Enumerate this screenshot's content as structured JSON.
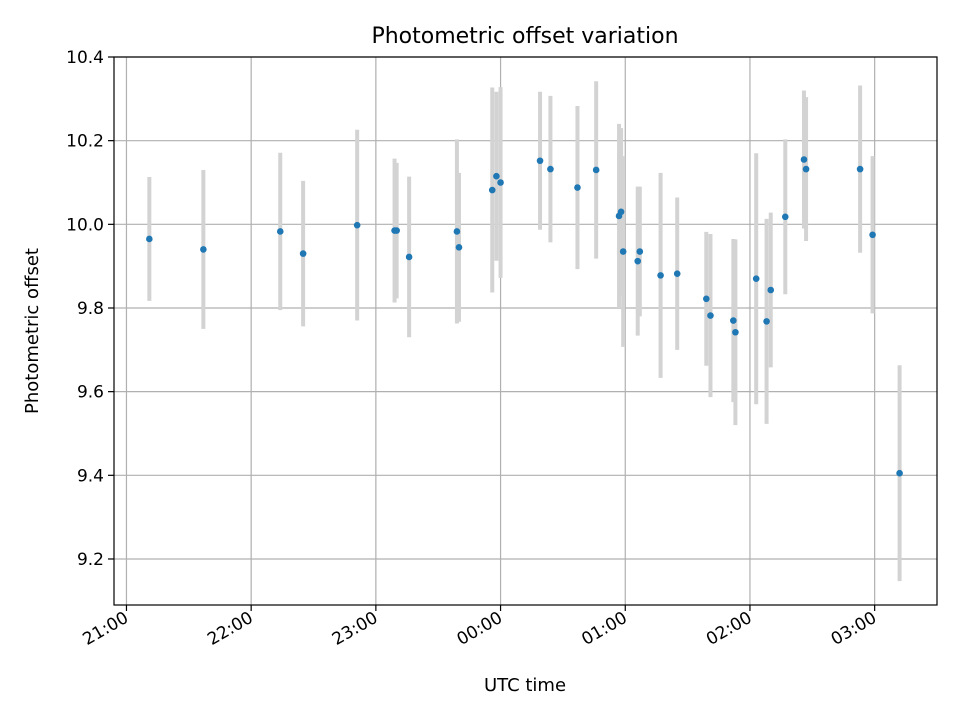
{
  "chart_data": {
    "type": "scatter",
    "title": "Photometric offset variation",
    "xlabel": "UTC time",
    "ylabel": "Photometric offset",
    "xlim": [
      "20:54",
      "03:30"
    ],
    "ylim": [
      9.09,
      10.4
    ],
    "xticks": [
      "21:00",
      "22:00",
      "23:00",
      "00:00",
      "01:00",
      "02:00",
      "03:00"
    ],
    "yticks": [
      "9.2",
      "9.4",
      "9.6",
      "9.8",
      "10.0",
      "10.2",
      "10.4"
    ],
    "grid": true,
    "colors": {
      "point": "#1f77b4",
      "errorbar": "#d3d3d3",
      "grid": "#b0b0b0"
    },
    "points": [
      {
        "x": "21:11",
        "y": 9.965,
        "err": 0.148
      },
      {
        "x": "21:37",
        "y": 9.94,
        "err": 0.19
      },
      {
        "x": "22:14",
        "y": 9.983,
        "err": 0.188
      },
      {
        "x": "22:25",
        "y": 9.93,
        "err": 0.174
      },
      {
        "x": "22:51",
        "y": 9.998,
        "err": 0.228
      },
      {
        "x": "23:09",
        "y": 9.985,
        "err": 0.172
      },
      {
        "x": "23:10",
        "y": 9.985,
        "err": 0.162
      },
      {
        "x": "23:16",
        "y": 9.922,
        "err": 0.192
      },
      {
        "x": "23:39",
        "y": 9.983,
        "err": 0.22
      },
      {
        "x": "23:40",
        "y": 9.945,
        "err": 0.178
      },
      {
        "x": "23:56",
        "y": 10.082,
        "err": 0.245
      },
      {
        "x": "23:58",
        "y": 10.115,
        "err": 0.202
      },
      {
        "x": "00:00",
        "y": 10.1,
        "err": 0.228
      },
      {
        "x": "00:19",
        "y": 10.152,
        "err": 0.165
      },
      {
        "x": "00:24",
        "y": 10.132,
        "err": 0.175
      },
      {
        "x": "00:37",
        "y": 10.088,
        "err": 0.195
      },
      {
        "x": "00:46",
        "y": 10.13,
        "err": 0.212
      },
      {
        "x": "00:57",
        "y": 10.02,
        "err": 0.22
      },
      {
        "x": "00:58",
        "y": 10.03,
        "err": 0.2
      },
      {
        "x": "00:59",
        "y": 9.935,
        "err": 0.228
      },
      {
        "x": "01:06",
        "y": 9.912,
        "err": 0.178
      },
      {
        "x": "01:07",
        "y": 9.935,
        "err": 0.155
      },
      {
        "x": "01:17",
        "y": 9.878,
        "err": 0.245
      },
      {
        "x": "01:25",
        "y": 9.882,
        "err": 0.182
      },
      {
        "x": "01:39",
        "y": 9.822,
        "err": 0.16
      },
      {
        "x": "01:41",
        "y": 9.782,
        "err": 0.195
      },
      {
        "x": "01:52",
        "y": 9.77,
        "err": 0.195
      },
      {
        "x": "01:53",
        "y": 9.742,
        "err": 0.222
      },
      {
        "x": "02:03",
        "y": 9.87,
        "err": 0.3
      },
      {
        "x": "02:08",
        "y": 9.768,
        "err": 0.245
      },
      {
        "x": "02:10",
        "y": 9.843,
        "err": 0.185
      },
      {
        "x": "02:17",
        "y": 10.018,
        "err": 0.185
      },
      {
        "x": "02:26",
        "y": 10.155,
        "err": 0.165
      },
      {
        "x": "02:27",
        "y": 10.132,
        "err": 0.172
      },
      {
        "x": "02:53",
        "y": 10.132,
        "err": 0.2
      },
      {
        "x": "02:59",
        "y": 9.975,
        "err": 0.188
      },
      {
        "x": "03:12",
        "y": 9.405,
        "err": 0.258
      }
    ]
  }
}
